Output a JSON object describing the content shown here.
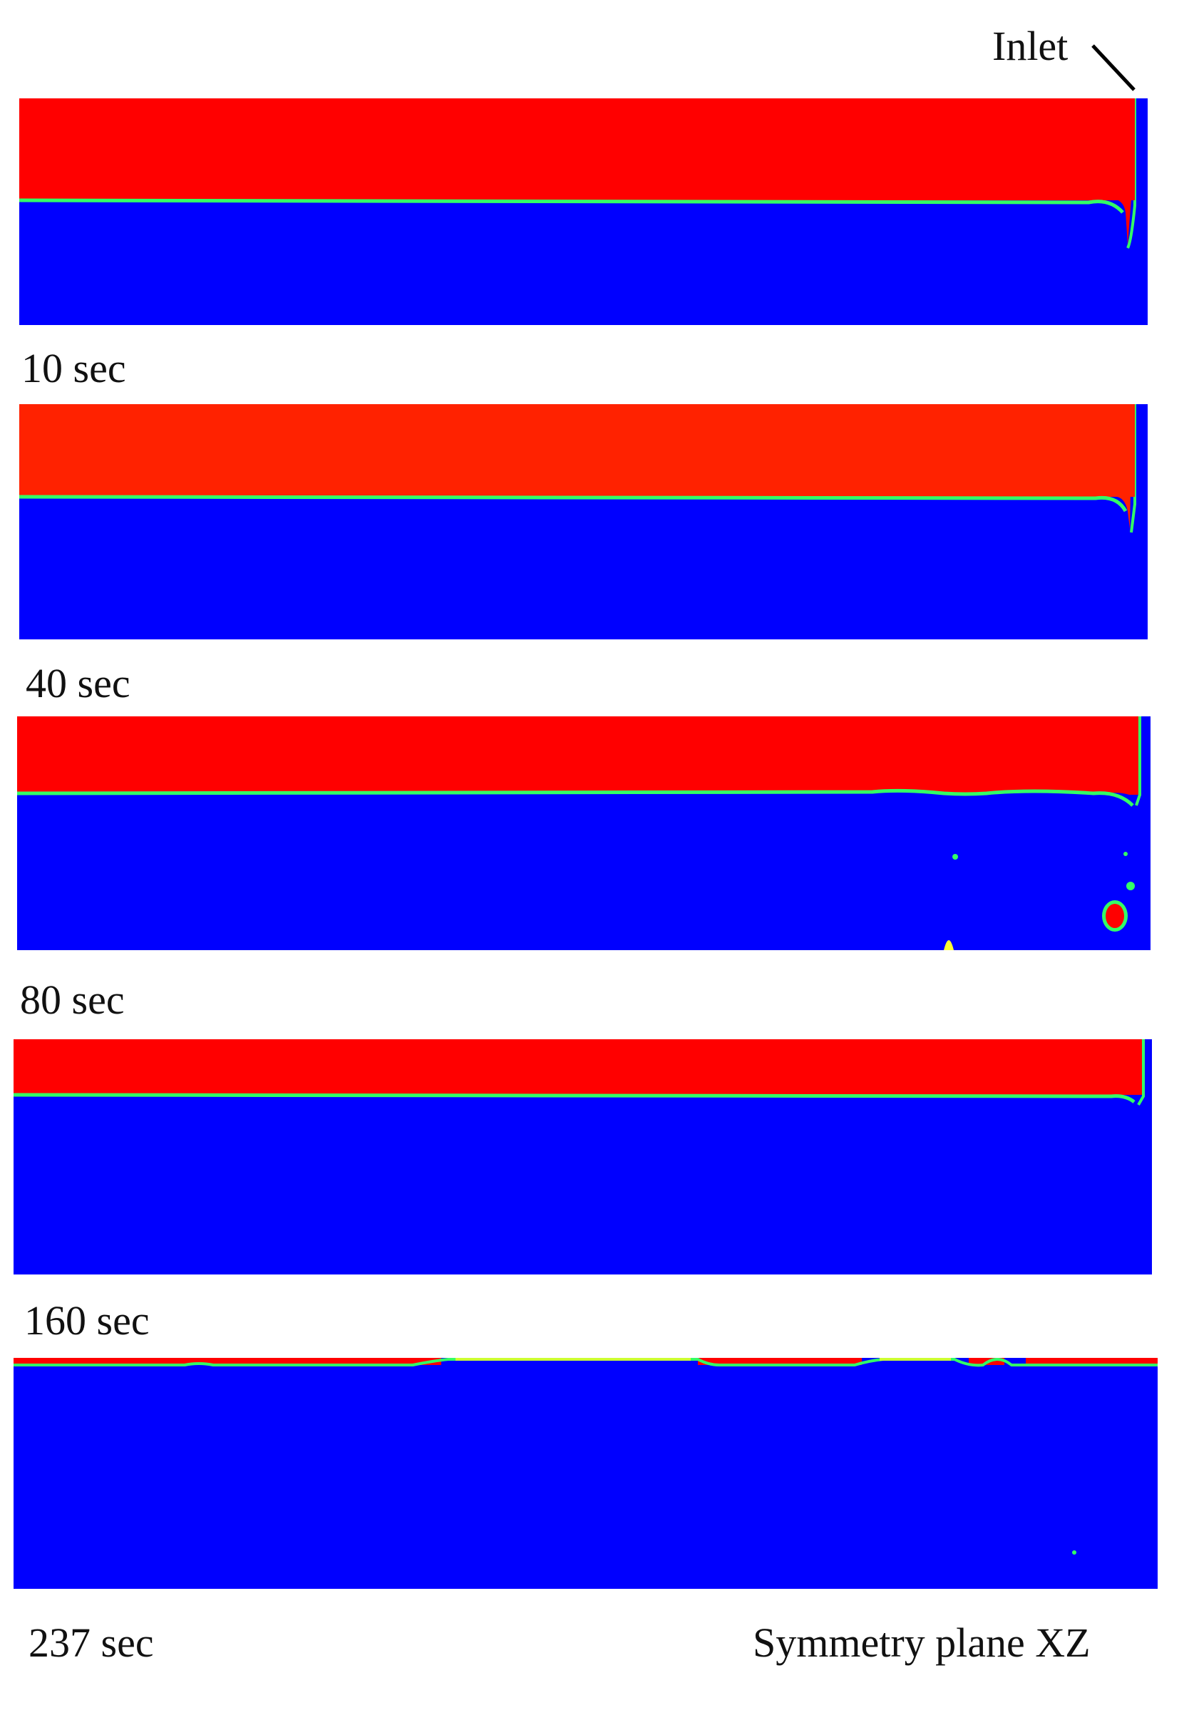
{
  "inlet_label": "Inlet",
  "plane_label": "Symmetry plane XZ",
  "colors": {
    "upper_fluid": "#ff0000",
    "upper_fluid_alt": "#ff2200",
    "lower_fluid": "#0000ff",
    "interface_green": "#33ff66",
    "interface_yellow": "#ccff33"
  },
  "snapshots": [
    {
      "time_label": "10 sec"
    },
    {
      "time_label": "40 sec"
    },
    {
      "time_label": "80 sec"
    },
    {
      "time_label": "160 sec"
    },
    {
      "time_label": "237 sec"
    }
  ]
}
